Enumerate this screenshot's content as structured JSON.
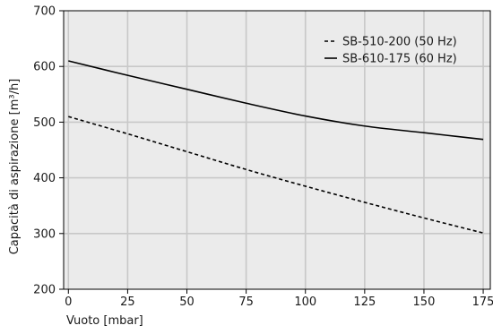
{
  "chart_data": {
    "type": "line",
    "xlabel": "Vuoto [mbar]",
    "ylabel": "Capacità di aspirazione [m³/h]",
    "xlim": [
      -2,
      178
    ],
    "ylim": [
      200,
      700
    ],
    "xticks": [
      0,
      25,
      50,
      75,
      100,
      125,
      150,
      175
    ],
    "yticks": [
      200,
      300,
      400,
      500,
      600,
      700
    ],
    "grid": true,
    "legend_position": "top-right",
    "series": [
      {
        "name": "SB-510-200 (50 Hz)",
        "line_style": "dashed",
        "color": "#000000",
        "x": [
          0,
          25,
          50,
          75,
          100,
          125,
          150,
          175
        ],
        "y": [
          510,
          479,
          447,
          415,
          385,
          356,
          328,
          301
        ]
      },
      {
        "name": "SB-610-175 (60 Hz)",
        "line_style": "solid",
        "color": "#000000",
        "x": [
          0,
          25,
          50,
          75,
          100,
          125,
          150,
          175
        ],
        "y": [
          610,
          584,
          559,
          534,
          511,
          493,
          481,
          469
        ]
      }
    ]
  },
  "colors": {
    "plot_background": "#ebebeb",
    "grid": "#c8c8c8",
    "axis": "#000000"
  }
}
